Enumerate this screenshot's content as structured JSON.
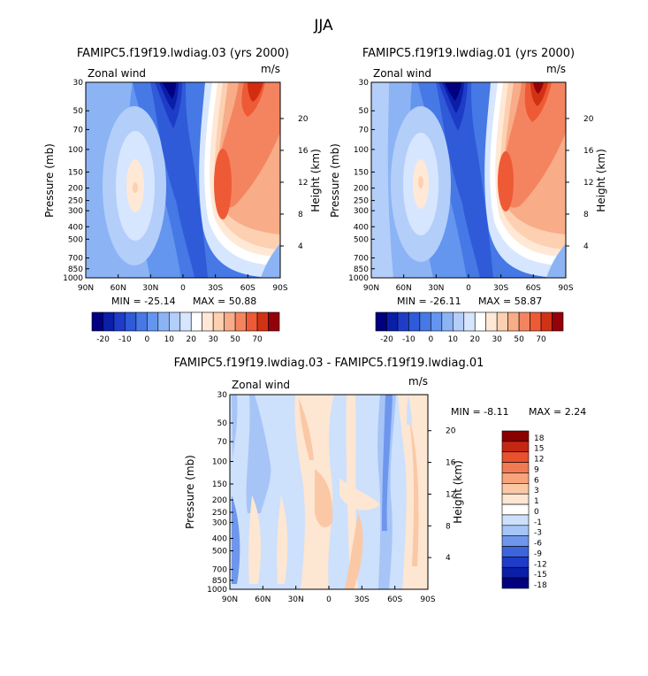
{
  "season": "JJA",
  "colors": {
    "abs_scale": [
      "#000080",
      "#0a1ea8",
      "#1e3cc8",
      "#2f5ad8",
      "#4678e6",
      "#6496f0",
      "#8cb4f5",
      "#b4cefa",
      "#d6e6ff",
      "#ffffff",
      "#ffe8d6",
      "#fcd0b0",
      "#f8ac88",
      "#f48460",
      "#ee5a36",
      "#d23214",
      "#96000a"
    ],
    "diff_scale": [
      "#000080",
      "#0a1ea8",
      "#1e3cc8",
      "#3c64dc",
      "#6e96ec",
      "#a6c4f6",
      "#cde0fc",
      "#ffffff",
      "#fde6d2",
      "#fbc8a6",
      "#f7a47c",
      "#f27a52",
      "#e8502e",
      "#c52812",
      "#8a0000"
    ]
  },
  "chart_data": [
    {
      "id": "panel1",
      "type": "contour",
      "title": "FAMIPC5.f19f19.lwdiag.03 (yrs 2000)",
      "variable": "Zonal wind",
      "units": "m/s",
      "ylabel": "Pressure (mb)",
      "ylabel_right": "Height (km)",
      "x_ticks": [
        "90N",
        "60N",
        "30N",
        "0",
        "30S",
        "60S",
        "90S"
      ],
      "y_ticks": [
        "30",
        "50",
        "70",
        "100",
        "150",
        "200",
        "250",
        "300",
        "400",
        "500",
        "700",
        "850",
        "1000"
      ],
      "y_ticks_right": [
        "20",
        "16",
        "12",
        "8",
        "4"
      ],
      "min_text": "MIN = -25.14",
      "max_text": "MAX = 50.88",
      "min": -25.14,
      "max": 50.88,
      "levels": [
        "-20",
        "-10",
        "0",
        "10",
        "20",
        "30",
        "50",
        "70"
      ],
      "features": [
        {
          "lat": 45,
          "p": 200,
          "value": 2
        },
        {
          "lat": 15,
          "p": 40,
          "value": -25
        },
        {
          "lat": -25,
          "p": 200,
          "value": 35
        },
        {
          "lat": -60,
          "p": 40,
          "value": 50
        },
        {
          "lat": -55,
          "p": 500,
          "value": 8
        }
      ]
    },
    {
      "id": "panel2",
      "type": "contour",
      "title": "FAMIPC5.f19f19.lwdiag.01 (yrs 2000)",
      "variable": "Zonal wind",
      "units": "m/s",
      "ylabel": "Pressure (mb)",
      "ylabel_right": "Height (km)",
      "x_ticks": [
        "90N",
        "60N",
        "30N",
        "0",
        "30S",
        "60S",
        "90S"
      ],
      "y_ticks": [
        "30",
        "50",
        "70",
        "100",
        "150",
        "200",
        "250",
        "300",
        "400",
        "500",
        "700",
        "850",
        "1000"
      ],
      "y_ticks_right": [
        "20",
        "16",
        "12",
        "8",
        "4"
      ],
      "min_text": "MIN = -26.11",
      "max_text": "MAX = 58.87",
      "min": -26.11,
      "max": 58.87,
      "levels": [
        "-20",
        "-10",
        "0",
        "10",
        "20",
        "30",
        "50",
        "70"
      ],
      "features": [
        {
          "lat": 45,
          "p": 200,
          "value": 2
        },
        {
          "lat": 15,
          "p": 40,
          "value": -26
        },
        {
          "lat": -25,
          "p": 200,
          "value": 35
        },
        {
          "lat": -60,
          "p": 40,
          "value": 58
        },
        {
          "lat": -55,
          "p": 500,
          "value": 8
        }
      ]
    },
    {
      "id": "panel3",
      "type": "contour",
      "title": "FAMIPC5.f19f19.lwdiag.03 - FAMIPC5.f19f19.lwdiag.01",
      "variable": "Zonal wind",
      "units": "m/s",
      "ylabel": "Pressure (mb)",
      "ylabel_right": "Height (km)",
      "x_ticks": [
        "90N",
        "60N",
        "30N",
        "0",
        "30S",
        "60S",
        "90S"
      ],
      "y_ticks": [
        "30",
        "50",
        "70",
        "100",
        "150",
        "200",
        "250",
        "300",
        "400",
        "500",
        "700",
        "850",
        "1000"
      ],
      "y_ticks_right": [
        "20",
        "16",
        "12",
        "8",
        "4"
      ],
      "min_text": "MIN =   -8.11",
      "max_text": "MAX =    2.24",
      "min": -8.11,
      "max": 2.24,
      "levels": [
        "18",
        "15",
        "12",
        "9",
        "6",
        "3",
        "1",
        "0",
        "-1",
        "-3",
        "-6",
        "-9",
        "-12",
        "-15",
        "-18"
      ],
      "legend_position": "right"
    }
  ]
}
